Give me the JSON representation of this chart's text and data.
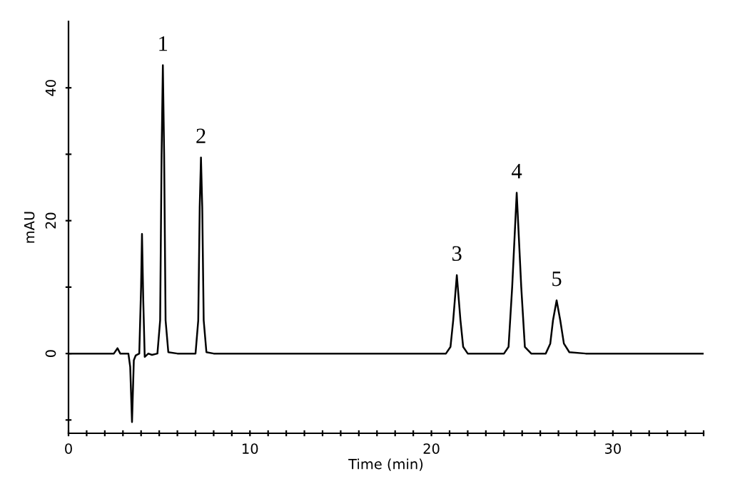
{
  "chart_data": {
    "type": "line",
    "xlabel": "Time (min)",
    "ylabel": "mAU",
    "x": [
      0,
      2.5,
      2.7,
      2.85,
      3.3,
      3.4,
      3.5,
      3.6,
      3.7,
      3.9,
      4.0,
      4.05,
      4.12,
      4.2,
      4.4,
      4.6,
      4.9,
      5.05,
      5.13,
      5.2,
      5.27,
      5.35,
      5.5,
      6,
      7.0,
      7.15,
      7.23,
      7.3,
      7.37,
      7.45,
      7.6,
      8,
      20.8,
      21.05,
      21.2,
      21.4,
      21.6,
      21.75,
      22.0,
      24.0,
      24.25,
      24.45,
      24.7,
      24.95,
      25.15,
      25.5,
      26.3,
      26.55,
      26.7,
      26.9,
      27.1,
      27.3,
      27.6,
      28.5,
      35
    ],
    "series": [
      {
        "color": "#000000",
        "values": [
          0,
          0,
          0.8,
          0,
          0,
          -2,
          -10.3,
          -1,
          -0.3,
          0,
          10,
          18,
          8,
          -0.5,
          0,
          -0.2,
          0,
          5,
          30,
          43.4,
          30,
          5,
          0.2,
          0,
          0,
          5,
          22,
          29.5,
          22,
          5,
          0.2,
          0,
          0,
          1,
          5,
          11.8,
          5,
          1,
          0,
          0,
          1,
          10,
          24.2,
          10,
          1,
          0,
          0,
          1.5,
          5,
          8.0,
          5,
          1.5,
          0.2,
          0,
          0
        ]
      }
    ],
    "annotations": [
      {
        "text": "1",
        "x": 5.2,
        "y": 43.4
      },
      {
        "text": "2",
        "x": 7.3,
        "y": 29.5
      },
      {
        "text": "3",
        "x": 21.4,
        "y": 11.8
      },
      {
        "text": "4",
        "x": 24.7,
        "y": 24.2
      },
      {
        "text": "5",
        "x": 26.9,
        "y": 8.0
      }
    ],
    "xlim": [
      0,
      35
    ],
    "ylim": [
      -12,
      50
    ],
    "xticks": [
      0,
      {
        "value": 1,
        "label": null
      },
      {
        "value": 2,
        "label": null
      },
      {
        "value": 3,
        "label": null
      },
      {
        "value": 4,
        "label": null
      },
      {
        "value": 5,
        "label": null
      },
      {
        "value": 6,
        "label": null
      },
      {
        "value": 7,
        "label": null
      },
      {
        "value": 8,
        "label": null
      },
      {
        "value": 9,
        "label": null
      },
      10,
      {
        "value": 11,
        "label": null
      },
      {
        "value": 12,
        "label": null
      },
      {
        "value": 13,
        "label": null
      },
      {
        "value": 14,
        "label": null
      },
      {
        "value": 15,
        "label": null
      },
      {
        "value": 16,
        "label": null
      },
      {
        "value": 17,
        "label": null
      },
      {
        "value": 18,
        "label": null
      },
      {
        "value": 19,
        "label": null
      },
      20,
      {
        "value": 21,
        "label": null
      },
      {
        "value": 22,
        "label": null
      },
      {
        "value": 23,
        "label": null
      },
      {
        "value": 24,
        "label": null
      },
      {
        "value": 25,
        "label": null
      },
      {
        "value": 26,
        "label": null
      },
      {
        "value": 27,
        "label": null
      },
      {
        "value": 28,
        "label": null
      },
      {
        "value": 29,
        "label": null
      },
      30,
      {
        "value": 31,
        "label": null
      },
      {
        "value": 32,
        "label": null
      },
      {
        "value": 33,
        "label": null
      },
      {
        "value": 34,
        "label": null
      },
      {
        "value": 35,
        "label": null
      }
    ],
    "yticks": [
      {
        "value": -10,
        "label": null
      },
      0,
      {
        "value": 10,
        "label": null
      },
      20,
      {
        "value": 30,
        "label": null
      },
      40
    ],
    "grid": false,
    "marker": "none",
    "line_style": "solid"
  }
}
